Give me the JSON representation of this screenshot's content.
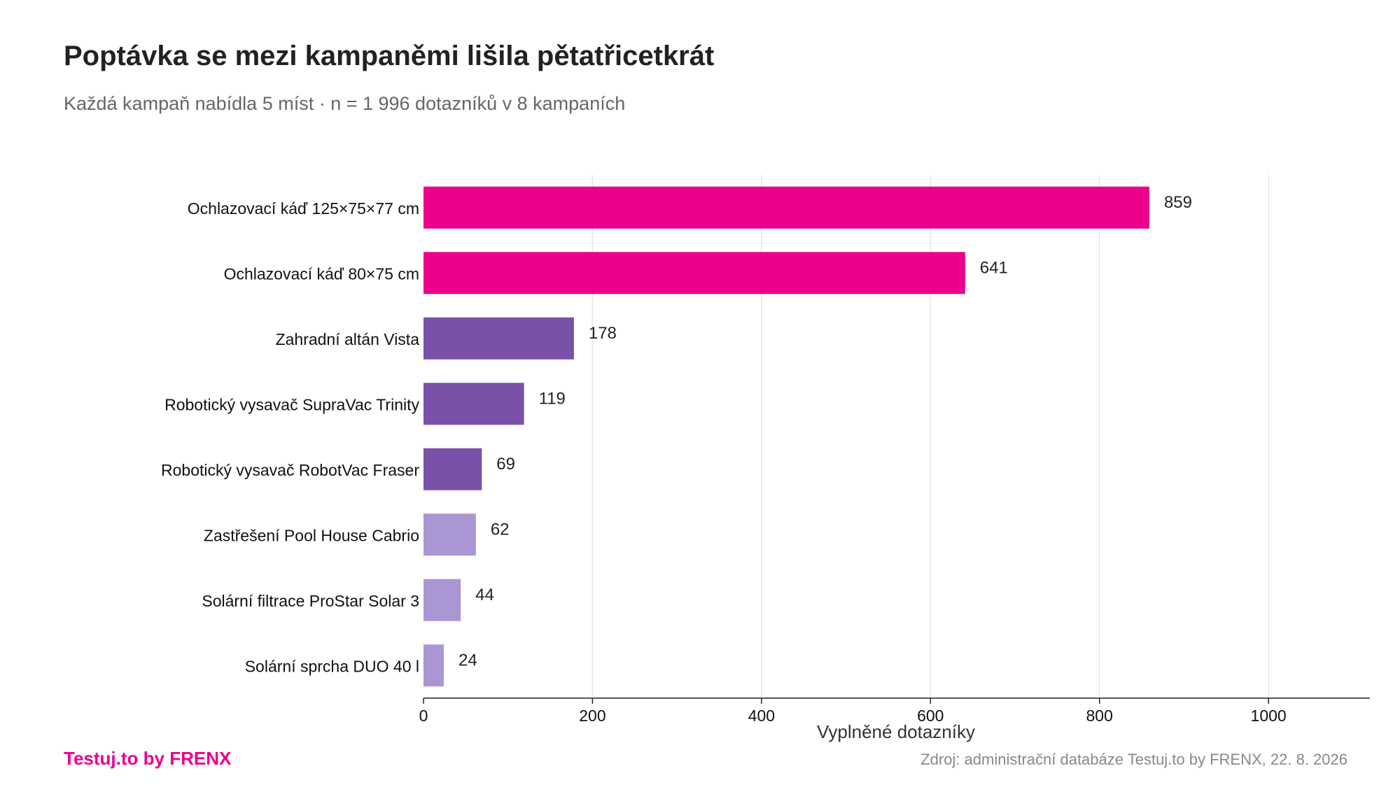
{
  "title": "Poptávka se mezi kampaněmi lišila pětatřicetkrát",
  "subtitle": "Každá kampaň nabídla 5 míst · n = 1 996 dotazníků v 8 kampaních",
  "brand": {
    "text": "Testuj.to by FRENX",
    "color": "#ec008c"
  },
  "source": "Zdroj: administrační databáze Testuj.to by FRENX, 22. 8. 2026",
  "chart_data": {
    "type": "bar",
    "orientation": "horizontal",
    "categories": [
      "Ochlazovací káď 125×75×77 cm",
      "Ochlazovací káď 80×75 cm",
      "Zahradní altán Vista",
      "Robotický vysavač SupraVac Trinity",
      "Robotický vysavač RobotVac Fraser",
      "Zastřešení Pool House Cabrio",
      "Solární filtrace ProStar Solar 3",
      "Solární sprcha DUO 40 l"
    ],
    "values": [
      859,
      641,
      178,
      119,
      69,
      62,
      44,
      24
    ],
    "value_labels": [
      "859",
      "641",
      "178",
      "119",
      "69",
      "62",
      "44",
      "24"
    ],
    "bar_colors": [
      "#ec008c",
      "#ec008c",
      "#7a51a8",
      "#7a51a8",
      "#7a51a8",
      "#a996d2",
      "#a996d2",
      "#a996d2"
    ],
    "xlabel": "Vyplněné dotazníky",
    "ylabel": "",
    "xlim": [
      0,
      1120
    ],
    "xticks": [
      0,
      200,
      400,
      600,
      800,
      1000
    ],
    "xtick_labels": [
      "0",
      "200",
      "400",
      "600",
      "800",
      "1000"
    ],
    "grid": "vertical",
    "legend": "none"
  }
}
